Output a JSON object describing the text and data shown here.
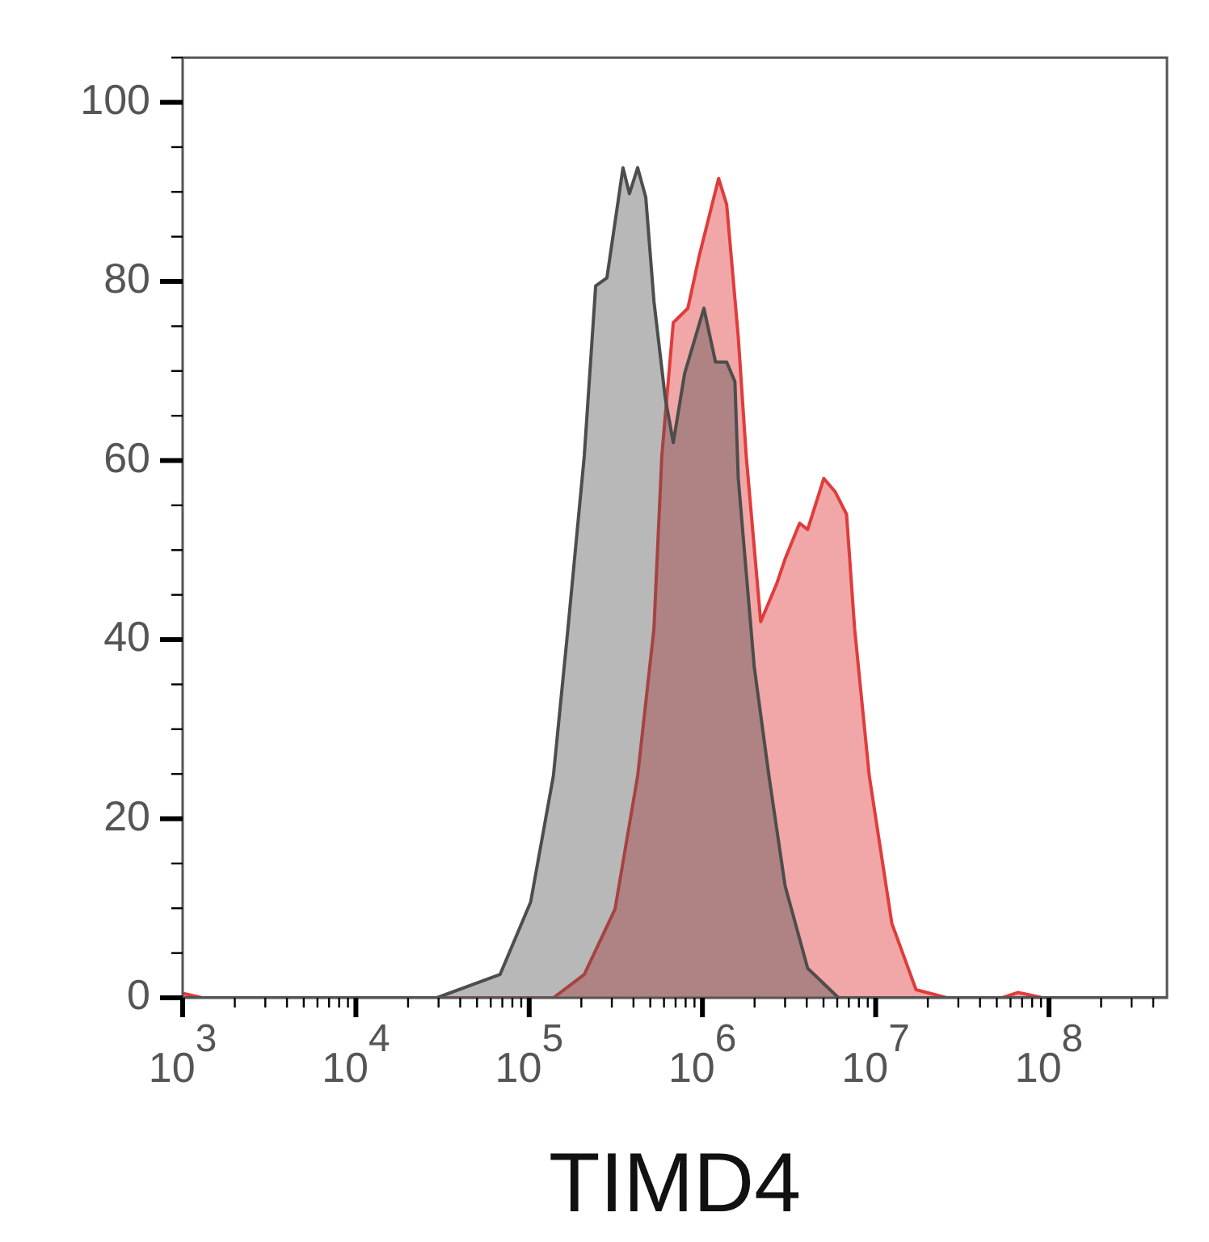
{
  "chart_data": {
    "type": "area",
    "xlabel": "TIMD4",
    "log": "x",
    "xlim": [
      1000,
      480000000
    ],
    "xticks": [
      {
        "value": 1000,
        "label": "10$^{3}$"
      },
      {
        "value": 2000,
        "label": null
      },
      {
        "value": 3000,
        "label": null
      },
      {
        "value": 4000,
        "label": null
      },
      {
        "value": 5000,
        "label": null
      },
      {
        "value": 6000,
        "label": null
      },
      {
        "value": 7000,
        "label": null
      },
      {
        "value": 8000,
        "label": null
      },
      {
        "value": 9000,
        "label": null
      },
      {
        "value": 10000,
        "label": "10$^{4}$"
      },
      {
        "value": 20000,
        "label": null
      },
      {
        "value": 30000,
        "label": null
      },
      {
        "value": 40000,
        "label": null
      },
      {
        "value": 50000,
        "label": null
      },
      {
        "value": 60000,
        "label": null
      },
      {
        "value": 70000,
        "label": null
      },
      {
        "value": 80000,
        "label": null
      },
      {
        "value": 90000,
        "label": null
      },
      {
        "value": 100000,
        "label": "10$^{5}$"
      },
      {
        "value": 200000,
        "label": null
      },
      {
        "value": 300000,
        "label": null
      },
      {
        "value": 400000,
        "label": null
      },
      {
        "value": 500000,
        "label": null
      },
      {
        "value": 600000,
        "label": null
      },
      {
        "value": 700000,
        "label": null
      },
      {
        "value": 800000,
        "label": null
      },
      {
        "value": 900000,
        "label": null
      },
      {
        "value": 1000000,
        "label": "10$^{6}$"
      },
      {
        "value": 2000000,
        "label": null
      },
      {
        "value": 3000000,
        "label": null
      },
      {
        "value": 4000000,
        "label": null
      },
      {
        "value": 5000000,
        "label": null
      },
      {
        "value": 6000000,
        "label": null
      },
      {
        "value": 7000000,
        "label": null
      },
      {
        "value": 8000000,
        "label": null
      },
      {
        "value": 9000000,
        "label": null
      },
      {
        "value": 10000000,
        "label": "10$^{7}$"
      },
      {
        "value": 20000000,
        "label": null
      },
      {
        "value": 30000000,
        "label": null
      },
      {
        "value": 40000000,
        "label": null
      },
      {
        "value": 50000000,
        "label": null
      },
      {
        "value": 60000000,
        "label": null
      },
      {
        "value": 70000000,
        "label": null
      },
      {
        "value": 80000000,
        "label": null
      },
      {
        "value": 90000000,
        "label": null
      },
      {
        "value": 100000000,
        "label": "10$^{8}$"
      },
      {
        "value": 200000000,
        "label": null
      },
      {
        "value": 300000000,
        "label": null
      },
      {
        "value": 400000000,
        "label": null
      }
    ],
    "ylim": [
      0,
      105
    ],
    "yticks": [
      0,
      {
        "value": 5,
        "label": null
      },
      {
        "value": 10,
        "label": null
      },
      {
        "value": 15,
        "label": null
      },
      20,
      {
        "value": 25,
        "label": null
      },
      {
        "value": 30,
        "label": null
      },
      {
        "value": 35,
        "label": null
      },
      40,
      {
        "value": 45,
        "label": null
      },
      {
        "value": 50,
        "label": null
      },
      {
        "value": 55,
        "label": null
      },
      60,
      {
        "value": 65,
        "label": null
      },
      {
        "value": 70,
        "label": null
      },
      {
        "value": 75,
        "label": null
      },
      80,
      {
        "value": 85,
        "label": null
      },
      {
        "value": 90,
        "label": null
      },
      {
        "value": 95,
        "label": null
      },
      100,
      {
        "value": 105,
        "label": null
      }
    ],
    "series": [
      {
        "color": "#4d4d4d",
        "x": [
          1000,
          29300,
          67900,
          102000,
          138000,
          167000,
          208000,
          242000,
          281000,
          348000,
          379000,
          423000,
          471000,
          525000,
          610000,
          679000,
          789000,
          1020000,
          1190000,
          1380000,
          1540000,
          1610000,
          1990000,
          2420000,
          3000000,
          4050000,
          6100000,
          480000000
        ],
        "values": [
          0,
          0,
          2.6,
          10.7,
          24.8,
          41,
          60.5,
          79.5,
          80.4,
          92.7,
          89.8,
          92.7,
          89.4,
          77.8,
          67,
          62,
          69.7,
          77,
          71,
          71,
          68.8,
          58,
          37,
          24.8,
          12.5,
          3.3,
          0,
          0
        ]
      },
      {
        "color": "#e03c3c",
        "x": [
          1000,
          1300,
          138000,
          208000,
          313000,
          423000,
          525000,
          583000,
          679000,
          824000,
          957000,
          1240000,
          1380000,
          1610000,
          1790000,
          2170000,
          2690000,
          3000000,
          3640000,
          4050000,
          5020000,
          5840000,
          6790000,
          7560000,
          9180000,
          12400000,
          17100000,
          25800000,
          53600000,
          66400000,
          91800000,
          480000000
        ],
        "values": [
          0.5,
          0,
          0,
          2.6,
          9.9,
          24.8,
          41.2,
          60.5,
          75.4,
          77,
          82.8,
          91.5,
          88.6,
          73.8,
          60.5,
          42,
          46.3,
          49,
          53,
          52.3,
          58,
          56.5,
          54,
          41.2,
          24.8,
          8.3,
          0.9,
          0,
          0,
          0.6,
          0,
          0
        ]
      }
    ]
  }
}
